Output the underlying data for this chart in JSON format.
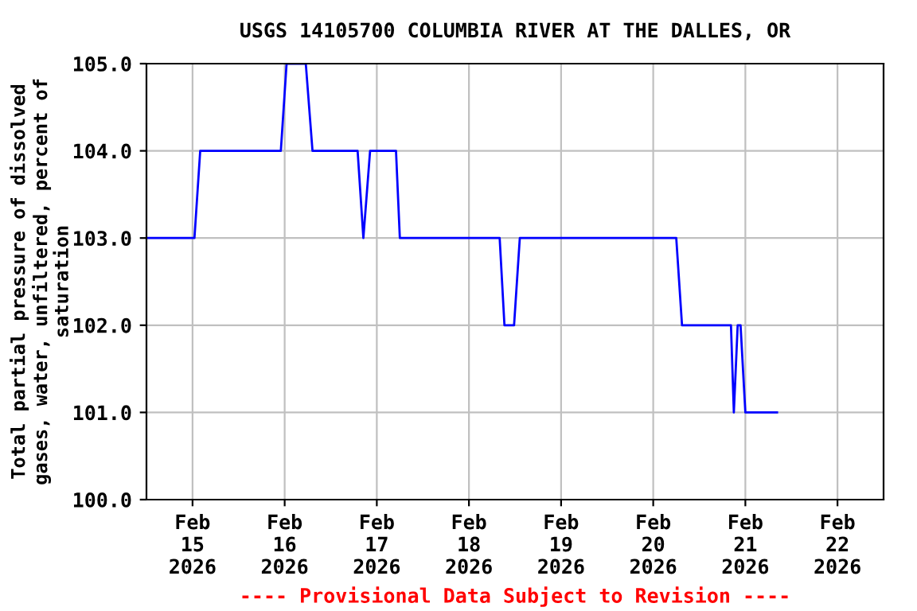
{
  "chart_data": {
    "type": "line",
    "title": "USGS 14105700 COLUMBIA RIVER AT THE DALLES, OR",
    "ylabel": "Total partial pressure of dissolved\ngases, water, unfiltered, percent of\nsaturation",
    "x": [
      "2026-02-14T12:00",
      "2026-02-15T00:30",
      "2026-02-15T02:00",
      "2026-02-15T23:00",
      "2026-02-16T00:30",
      "2026-02-16T05:30",
      "2026-02-16T07:15",
      "2026-02-16T19:00",
      "2026-02-16T20:30",
      "2026-02-16T22:15",
      "2026-02-17T05:00",
      "2026-02-17T06:00",
      "2026-02-18T08:00",
      "2026-02-18T09:15",
      "2026-02-18T11:45",
      "2026-02-18T13:15",
      "2026-02-20T06:00",
      "2026-02-20T07:30",
      "2026-02-20T20:15",
      "2026-02-20T21:00",
      "2026-02-20T22:00",
      "2026-02-20T22:45",
      "2026-02-21T00:00",
      "2026-02-21T08:15"
    ],
    "series": [
      {
        "color": "#0000ff",
        "values": [
          103,
          103,
          104,
          104,
          105,
          105,
          104,
          104,
          103,
          104,
          104,
          103,
          103,
          102,
          102,
          103,
          103,
          102,
          102,
          101,
          102,
          102,
          101,
          101
        ]
      }
    ],
    "xlim": [
      "2026-02-14T12:00",
      "2026-02-22T12:00"
    ],
    "xticks": [
      {
        "value": "2026-02-15",
        "label": "Feb\n15\n2026"
      },
      {
        "value": "2026-02-16",
        "label": "Feb\n16\n2026"
      },
      {
        "value": "2026-02-17",
        "label": "Feb\n17\n2026"
      },
      {
        "value": "2026-02-18",
        "label": "Feb\n18\n2026"
      },
      {
        "value": "2026-02-19",
        "label": "Feb\n19\n2026"
      },
      {
        "value": "2026-02-20",
        "label": "Feb\n20\n2026"
      },
      {
        "value": "2026-02-21",
        "label": "Feb\n21\n2026"
      },
      {
        "value": "2026-02-22",
        "label": "Feb\n22\n2026"
      }
    ],
    "ylim": [
      100,
      105
    ],
    "yticks": [
      {
        "value": 100,
        "label": "100.0"
      },
      {
        "value": 101,
        "label": "101.0"
      },
      {
        "value": 102,
        "label": "102.0"
      },
      {
        "value": 103,
        "label": "103.0"
      },
      {
        "value": 104,
        "label": "104.0"
      },
      {
        "value": 105,
        "label": "105.0"
      }
    ],
    "grid": true,
    "annotations": [
      "---- Provisional Data Subject to Revision ----"
    ]
  }
}
